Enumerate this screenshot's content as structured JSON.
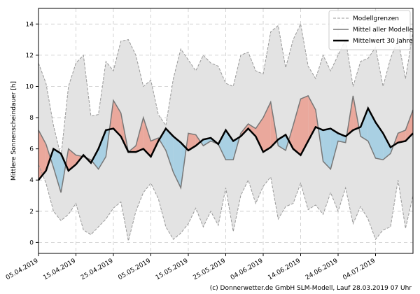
{
  "chart_data": {
    "type": "band-line",
    "y_label": "Mittlere Sonnenscheindauer [h]",
    "footer": "(c) Donnerwetter.de GmbH SLM-Modell, Lauf 28.03.2019 07 Uhr",
    "x": [
      "05.04.2019",
      "07.04.2019",
      "09.04.2019",
      "11.04.2019",
      "13.04.2019",
      "15.04.2019",
      "17.04.2019",
      "19.04.2019",
      "21.04.2019",
      "23.04.2019",
      "25.04.2019",
      "27.04.2019",
      "29.04.2019",
      "01.05.2019",
      "03.05.2019",
      "05.05.2019",
      "07.05.2019",
      "09.05.2019",
      "11.05.2019",
      "13.05.2019",
      "15.05.2019",
      "17.05.2019",
      "19.05.2019",
      "21.05.2019",
      "23.05.2019",
      "25.05.2019",
      "27.05.2019",
      "29.05.2019",
      "31.05.2019",
      "02.06.2019",
      "04.06.2019",
      "06.06.2019",
      "08.06.2019",
      "10.06.2019",
      "12.06.2019",
      "14.06.2019",
      "16.06.2019",
      "18.06.2019",
      "20.06.2019",
      "22.06.2019",
      "24.06.2019",
      "26.06.2019",
      "28.06.2019",
      "30.06.2019",
      "02.07.2019",
      "04.07.2019",
      "06.07.2019",
      "08.07.2019",
      "10.07.2019",
      "12.07.2019",
      "14.07.2019"
    ],
    "series": [
      {
        "name": "Modellgrenzen",
        "color": "#999999",
        "band_color": "#e3e3e3",
        "upper": [
          11.5,
          10.2,
          7.5,
          5.5,
          10.0,
          11.5,
          12.0,
          8.1,
          8.2,
          11.6,
          11.0,
          12.9,
          13.0,
          12.0,
          10.0,
          10.4,
          8.2,
          7.5,
          10.5,
          12.4,
          11.7,
          11.0,
          12.0,
          11.5,
          11.3,
          10.2,
          10.0,
          12.0,
          12.2,
          11.0,
          10.8,
          13.5,
          13.9,
          11.2,
          13.0,
          14.0,
          11.3,
          10.5,
          12.0,
          11.0,
          12.0,
          13.0,
          10.0,
          11.6,
          11.8,
          12.5,
          10.0,
          11.8,
          13.0,
          10.5,
          13.5
        ],
        "lower": [
          5.0,
          3.8,
          2.0,
          1.4,
          1.8,
          2.5,
          0.8,
          0.5,
          1.0,
          1.5,
          2.2,
          2.6,
          0.1,
          2.0,
          3.2,
          3.8,
          2.8,
          1.0,
          0.2,
          0.6,
          1.2,
          2.2,
          1.0,
          2.0,
          1.1,
          3.5,
          0.7,
          3.0,
          4.0,
          2.5,
          3.6,
          4.2,
          1.5,
          2.3,
          2.5,
          3.8,
          2.1,
          2.4,
          1.8,
          3.2,
          2.0,
          3.5,
          1.2,
          2.3,
          1.5,
          0.2,
          0.8,
          1.0,
          4.0,
          0.9,
          3.0
        ]
      },
      {
        "name": "Mittel aller Modelle",
        "color": "#777777",
        "values": [
          7.2,
          6.3,
          4.8,
          3.2,
          6.0,
          5.6,
          5.5,
          5.3,
          4.7,
          5.5,
          9.1,
          8.3,
          5.8,
          6.2,
          8.0,
          6.5,
          6.7,
          5.9,
          4.5,
          3.5,
          7.0,
          6.9,
          6.2,
          6.5,
          6.3,
          5.3,
          5.3,
          7.0,
          7.6,
          7.3,
          8.0,
          9.0,
          6.2,
          5.9,
          7.5,
          9.2,
          9.4,
          8.5,
          5.2,
          4.7,
          6.5,
          6.4,
          9.4,
          6.8,
          6.5,
          5.4,
          5.3,
          5.7,
          7.0,
          7.2,
          8.5
        ]
      },
      {
        "name": "Mittelwert 30 Jahre",
        "color": "#000000",
        "values": [
          4.0,
          4.6,
          6.0,
          5.7,
          4.6,
          5.0,
          5.6,
          5.1,
          6.0,
          7.2,
          7.3,
          6.8,
          5.8,
          5.8,
          6.0,
          5.5,
          6.5,
          7.3,
          6.8,
          6.4,
          5.9,
          6.2,
          6.6,
          6.7,
          6.3,
          7.2,
          6.5,
          6.8,
          7.3,
          6.8,
          5.8,
          6.1,
          6.6,
          6.9,
          6.0,
          5.6,
          6.5,
          7.4,
          7.2,
          7.3,
          7.0,
          6.8,
          7.2,
          7.4,
          8.6,
          7.7,
          7.0,
          6.1,
          6.4,
          6.5,
          7.0
        ]
      }
    ],
    "above_color": "#eaa89c",
    "below_color": "#a9d0e3",
    "xlim": [
      "05.04.2019",
      "14.07.2019"
    ],
    "xticks": [
      "05.04.2019",
      "15.04.2019",
      "25.04.2019",
      "05.05.2019",
      "15.05.2019",
      "25.05.2019",
      "04.06.2019",
      "14.06.2019",
      "24.06.2019",
      "04.07.2019"
    ],
    "ylim": [
      -0.7,
      15
    ],
    "yticks": [
      0,
      2,
      4,
      6,
      8,
      10,
      12,
      14
    ],
    "grid": true,
    "legend": "upper right"
  }
}
